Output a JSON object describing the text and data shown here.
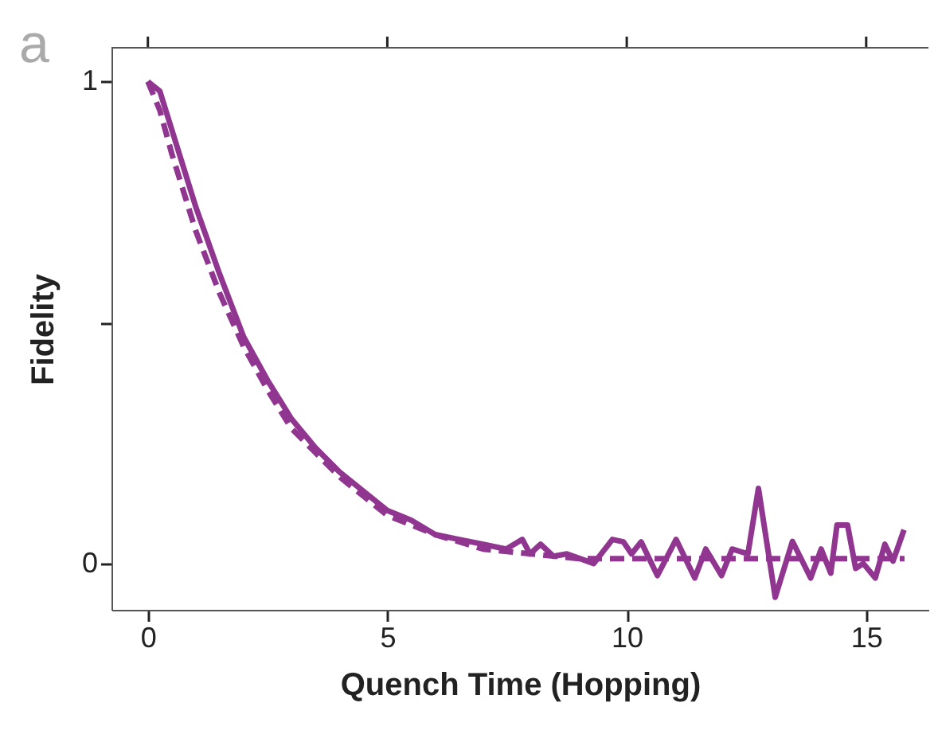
{
  "chart_data": {
    "type": "line",
    "xlabel": "Quench Time (Hopping)",
    "ylabel": "Fidelity",
    "annotations": [
      "a"
    ],
    "xlim": [
      -0.76,
      16.3
    ],
    "ylim": [
      -0.096,
      1.07
    ],
    "xticks": [
      0,
      5,
      10,
      15
    ],
    "yticks": [
      0,
      {
        "value": 0.5,
        "label": null
      },
      1
    ],
    "series": [
      {
        "color": "#903590",
        "line_style": "solid",
        "x": [
          0,
          0.25,
          0.5,
          1,
          1.5,
          2,
          2.5,
          3,
          3.5,
          4,
          4.5,
          5,
          5.5,
          6,
          6.5,
          7,
          7.48,
          7.82,
          7.98,
          8.2,
          8.47,
          8.75,
          9.31,
          9.7,
          9.93,
          10.1,
          10.3,
          10.64,
          11.03,
          11.42,
          11.65,
          11.98,
          12.2,
          12.53,
          12.75,
          13.1,
          13.46,
          13.84,
          14.06,
          14.26,
          14.39,
          14.61,
          14.78,
          14.94,
          15.19,
          15.39,
          15.56,
          15.79
        ],
        "values": [
          1.0,
          0.98,
          0.9,
          0.74,
          0.6,
          0.47,
          0.38,
          0.3,
          0.24,
          0.19,
          0.15,
          0.11,
          0.09,
          0.06,
          0.05,
          0.04,
          0.03,
          0.05,
          0.02,
          0.04,
          0.015,
          0.02,
          0.0,
          0.05,
          0.045,
          0.02,
          0.045,
          -0.025,
          0.05,
          -0.03,
          0.03,
          -0.025,
          0.03,
          0.02,
          0.156,
          -0.07,
          0.046,
          -0.03,
          0.03,
          -0.02,
          0.08,
          0.08,
          -0.01,
          0.0,
          -0.03,
          0.04,
          0.005,
          0.07
        ]
      },
      {
        "color": "#903590",
        "line_style": "dashed",
        "x": [
          0,
          0.25,
          0.5,
          1,
          1.5,
          2,
          2.5,
          3,
          3.5,
          4,
          4.5,
          5,
          5.5,
          6,
          7,
          8,
          9,
          10,
          12,
          14,
          15.8
        ],
        "values": [
          1.0,
          0.94,
          0.85,
          0.69,
          0.56,
          0.45,
          0.36,
          0.28,
          0.23,
          0.18,
          0.14,
          0.1,
          0.08,
          0.06,
          0.03,
          0.02,
          0.01,
          0.01,
          0.01,
          0.01,
          0.01
        ]
      }
    ]
  }
}
